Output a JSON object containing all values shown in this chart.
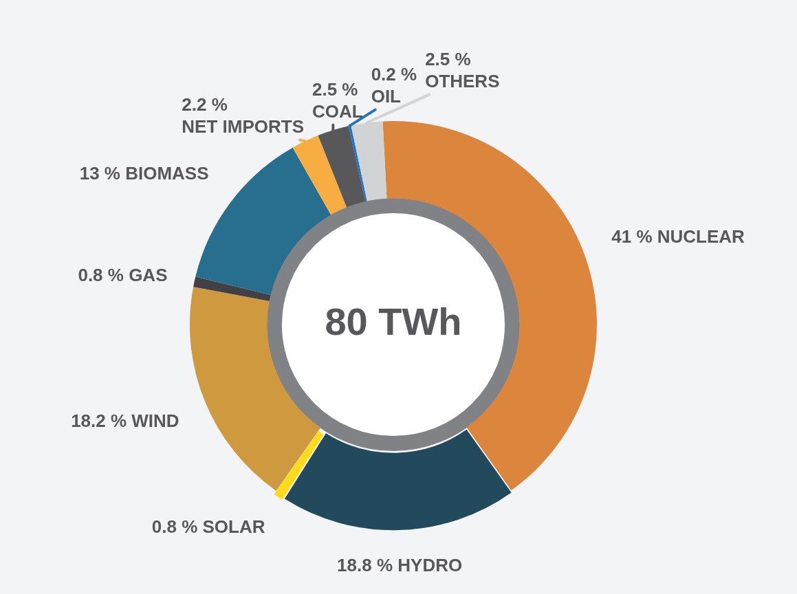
{
  "chart_data": {
    "type": "donut",
    "categories": [
      "NUCLEAR",
      "HYDRO",
      "SOLAR",
      "WIND",
      "GAS",
      "BIOMASS",
      "NET IMPORTS",
      "COAL",
      "OIL",
      "OTHERS"
    ],
    "values": [
      41,
      18.8,
      0.8,
      18.2,
      0.8,
      13,
      2.2,
      2.5,
      0.2,
      2.5
    ],
    "value_labels": [
      "41 %",
      "18.8 %",
      "0.8 %",
      "18.2 %",
      "0.8 %",
      "13 %",
      "2.2 %",
      "2.5 %",
      "0.2 %",
      "2.5 %"
    ],
    "colors": [
      "#dc853d",
      "#224a5c",
      "#fddb1a",
      "#cf9940",
      "#414042",
      "#286e8e",
      "#f8ad42",
      "#58585a",
      "#1e76be",
      "#d1d3d4"
    ],
    "annotations": [
      "80 TWh"
    ]
  }
}
